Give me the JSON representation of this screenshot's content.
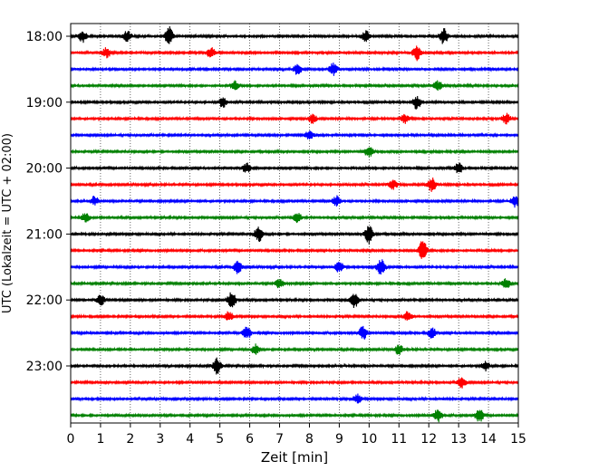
{
  "chart_data": {
    "type": "line",
    "title": "",
    "xlabel": "Zeit  [min]",
    "ylabel": "UTC (Lokalzeit = UTC + 02:00)",
    "xlim": [
      0,
      15
    ],
    "x_ticks": [
      0,
      1,
      2,
      3,
      4,
      5,
      6,
      7,
      8,
      9,
      10,
      11,
      12,
      13,
      14,
      15
    ],
    "y_ticks": [
      {
        "row": 0,
        "label": "18:00"
      },
      {
        "row": 4,
        "label": "19:00"
      },
      {
        "row": 8,
        "label": "20:00"
      },
      {
        "row": 12,
        "label": "21:00"
      },
      {
        "row": 16,
        "label": "22:00"
      },
      {
        "row": 20,
        "label": "23:00"
      }
    ],
    "vertical_grid": "dotted at each minute",
    "row_interval_min": 15,
    "row_colors": [
      "#000000",
      "#ff0000",
      "#0000ff",
      "#008000"
    ],
    "series": [
      {
        "start": "18:00",
        "bursts": [
          [
            0.4,
            1.6
          ],
          [
            1.9,
            1.4
          ],
          [
            3.3,
            2.4
          ],
          [
            9.9,
            1.4
          ],
          [
            12.5,
            2.1
          ]
        ]
      },
      {
        "start": "18:15",
        "bursts": [
          [
            1.2,
            1.3
          ],
          [
            4.7,
            1.3
          ],
          [
            11.6,
            2.0
          ]
        ]
      },
      {
        "start": "18:30",
        "bursts": [
          [
            7.6,
            1.5
          ],
          [
            8.8,
            1.6
          ]
        ]
      },
      {
        "start": "18:45",
        "bursts": [
          [
            5.5,
            1.3
          ],
          [
            12.3,
            1.3
          ]
        ]
      },
      {
        "start": "19:00",
        "bursts": [
          [
            5.1,
            1.3
          ],
          [
            11.6,
            1.8
          ]
        ]
      },
      {
        "start": "19:15",
        "bursts": [
          [
            8.1,
            1.3
          ],
          [
            11.2,
            1.2
          ],
          [
            14.6,
            1.4
          ]
        ]
      },
      {
        "start": "19:30",
        "bursts": [
          [
            8.0,
            1.3
          ]
        ]
      },
      {
        "start": "19:45",
        "bursts": [
          [
            10.0,
            1.4
          ]
        ]
      },
      {
        "start": "20:00",
        "bursts": [
          [
            5.9,
            1.3
          ],
          [
            13.0,
            1.5
          ]
        ]
      },
      {
        "start": "20:15",
        "bursts": [
          [
            10.8,
            1.3
          ],
          [
            12.1,
            1.8
          ]
        ]
      },
      {
        "start": "20:30",
        "bursts": [
          [
            0.8,
            1.2
          ],
          [
            8.9,
            1.3
          ],
          [
            14.9,
            1.6
          ]
        ]
      },
      {
        "start": "20:45",
        "bursts": [
          [
            0.5,
            1.3
          ],
          [
            7.6,
            1.3
          ]
        ]
      },
      {
        "start": "21:00",
        "bursts": [
          [
            6.3,
            2.0
          ],
          [
            10.0,
            2.6
          ]
        ]
      },
      {
        "start": "21:15",
        "bursts": [
          [
            11.8,
            2.6
          ]
        ]
      },
      {
        "start": "21:30",
        "bursts": [
          [
            5.6,
            1.7
          ],
          [
            9.0,
            1.4
          ],
          [
            10.4,
            2.2
          ]
        ]
      },
      {
        "start": "21:45",
        "bursts": [
          [
            7.0,
            1.3
          ],
          [
            14.6,
            1.3
          ]
        ]
      },
      {
        "start": "22:00",
        "bursts": [
          [
            1.0,
            1.5
          ],
          [
            5.4,
            2.2
          ],
          [
            9.5,
            2.0
          ]
        ]
      },
      {
        "start": "22:15",
        "bursts": [
          [
            5.3,
            1.3
          ],
          [
            11.3,
            1.2
          ]
        ]
      },
      {
        "start": "22:30",
        "bursts": [
          [
            5.9,
            1.7
          ],
          [
            9.8,
            1.8
          ],
          [
            12.1,
            1.4
          ]
        ]
      },
      {
        "start": "22:45",
        "bursts": [
          [
            6.2,
            1.3
          ],
          [
            11.0,
            1.3
          ]
        ]
      },
      {
        "start": "23:00",
        "bursts": [
          [
            4.9,
            2.2
          ],
          [
            13.9,
            1.3
          ]
        ]
      },
      {
        "start": "23:15",
        "bursts": [
          [
            13.1,
            1.6
          ]
        ]
      },
      {
        "start": "23:30",
        "bursts": [
          [
            9.6,
            1.2
          ]
        ]
      },
      {
        "start": "23:45",
        "bursts": [
          [
            12.3,
            1.7
          ],
          [
            13.7,
            1.9
          ]
        ]
      }
    ]
  }
}
